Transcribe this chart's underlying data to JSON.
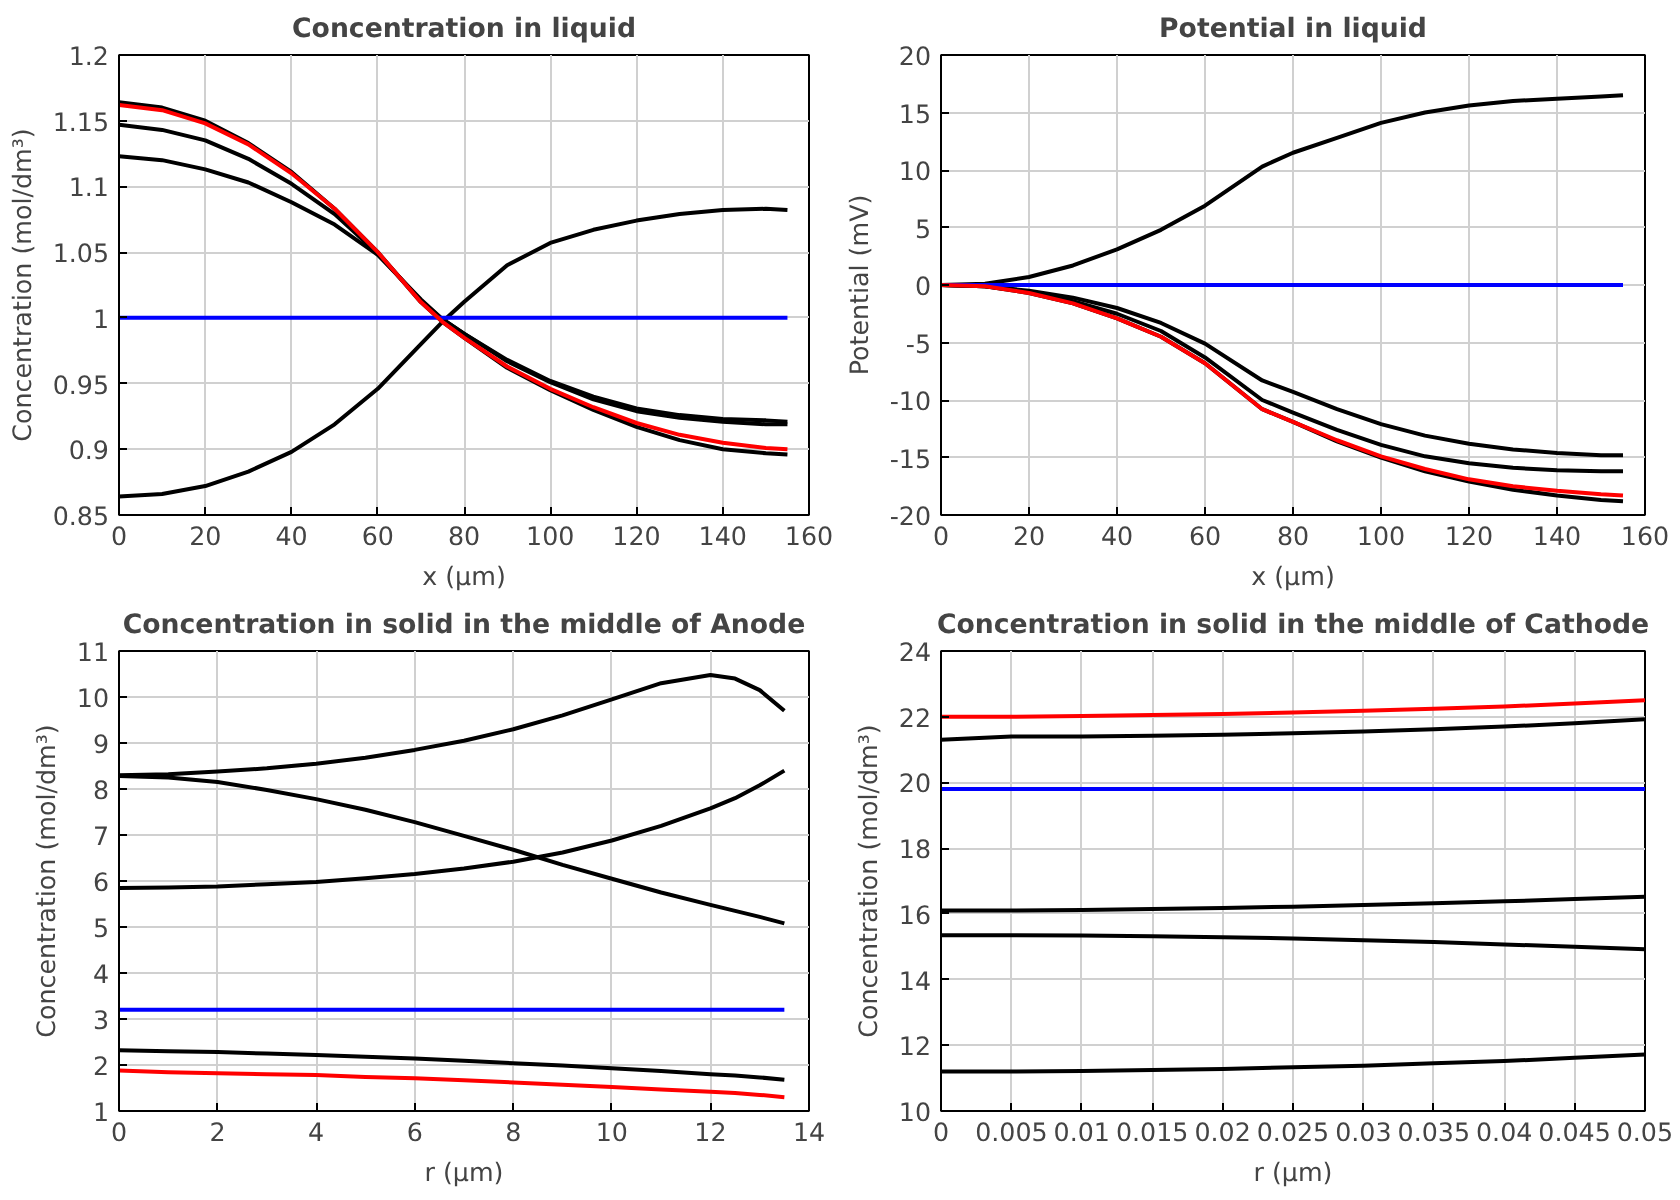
{
  "chart_data": [
    {
      "type": "line",
      "title": "Concentration in liquid",
      "xlabel": "x (µm)",
      "ylabel": "Concentration (mol/dm³)",
      "grid": true,
      "xlim": [
        0,
        160
      ],
      "xticks": [
        0,
        20,
        40,
        60,
        80,
        100,
        120,
        140,
        160
      ],
      "ylim": [
        0.85,
        1.2
      ],
      "yticks": [
        0.85,
        0.9,
        0.95,
        1,
        1.05,
        1.1,
        1.15,
        1.2
      ],
      "x": [
        0,
        10,
        20,
        30,
        40,
        50,
        60,
        70,
        75,
        80,
        90,
        100,
        110,
        120,
        130,
        140,
        150,
        155
      ],
      "series": [
        {
          "color": "#000000",
          "values": [
            1.164,
            1.16,
            1.15,
            1.133,
            1.111,
            1.083,
            1.05,
            1.012,
            0.997,
            0.985,
            0.962,
            0.945,
            0.93,
            0.917,
            0.907,
            0.9,
            0.897,
            0.896
          ]
        },
        {
          "color": "#000000",
          "values": [
            1.147,
            1.143,
            1.135,
            1.121,
            1.102,
            1.079,
            1.049,
            1.013,
            0.999,
            0.988,
            0.968,
            0.952,
            0.94,
            0.931,
            0.926,
            0.923,
            0.922,
            0.921
          ]
        },
        {
          "color": "#000000",
          "values": [
            1.123,
            1.12,
            1.113,
            1.103,
            1.088,
            1.071,
            1.048,
            1.014,
            0.999,
            0.988,
            0.967,
            0.951,
            0.938,
            0.929,
            0.924,
            0.921,
            0.919,
            0.919
          ]
        },
        {
          "color": "#000000",
          "values": [
            0.864,
            0.866,
            0.872,
            0.883,
            0.898,
            0.919,
            0.946,
            0.98,
            0.997,
            1.012,
            1.04,
            1.057,
            1.067,
            1.074,
            1.079,
            1.082,
            1.083,
            1.082
          ]
        },
        {
          "color": "#0000ff",
          "values": [
            1,
            1,
            1,
            1,
            1,
            1,
            1,
            1,
            1,
            1,
            1,
            1,
            1,
            1,
            1,
            1,
            1,
            1
          ]
        },
        {
          "color": "#ff0000",
          "values": [
            1.162,
            1.158,
            1.148,
            1.132,
            1.11,
            1.083,
            1.05,
            1.012,
            0.997,
            0.985,
            0.963,
            0.946,
            0.932,
            0.92,
            0.911,
            0.905,
            0.901,
            0.9
          ]
        }
      ]
    },
    {
      "type": "line",
      "title": "Potential in liquid",
      "xlabel": "x (µm)",
      "ylabel": "Potential (mV)",
      "grid": true,
      "xlim": [
        0,
        160
      ],
      "xticks": [
        0,
        20,
        40,
        60,
        80,
        100,
        120,
        140,
        160
      ],
      "ylim": [
        -20,
        20
      ],
      "yticks": [
        -20,
        -15,
        -10,
        -5,
        0,
        5,
        10,
        15,
        20
      ],
      "x": [
        0,
        10,
        20,
        30,
        40,
        50,
        60,
        73,
        80,
        90,
        100,
        110,
        120,
        130,
        140,
        150,
        155
      ],
      "series": [
        {
          "color": "#000000",
          "values": [
            0,
            0.1,
            0.7,
            1.7,
            3.1,
            4.8,
            6.9,
            10.3,
            11.5,
            12.8,
            14.1,
            15.0,
            15.6,
            16.0,
            16.2,
            16.4,
            16.5
          ]
        },
        {
          "color": "#000000",
          "values": [
            0,
            -0.1,
            -0.5,
            -1.1,
            -2.0,
            -3.3,
            -5.1,
            -8.3,
            -9.3,
            -10.8,
            -12.1,
            -13.1,
            -13.8,
            -14.3,
            -14.6,
            -14.8,
            -14.8
          ]
        },
        {
          "color": "#000000",
          "values": [
            0,
            -0.1,
            -0.6,
            -1.4,
            -2.5,
            -4.0,
            -6.3,
            -10.0,
            -11.1,
            -12.6,
            -13.9,
            -14.9,
            -15.5,
            -15.9,
            -16.1,
            -16.2,
            -16.2
          ]
        },
        {
          "color": "#000000",
          "values": [
            0,
            -0.1,
            -0.7,
            -1.6,
            -2.9,
            -4.5,
            -6.8,
            -10.8,
            -11.9,
            -13.6,
            -15.0,
            -16.2,
            -17.1,
            -17.8,
            -18.3,
            -18.7,
            -18.8
          ]
        },
        {
          "color": "#0000ff",
          "values": [
            0,
            0,
            0,
            0,
            0,
            0,
            0,
            0,
            0,
            0,
            0,
            0,
            0,
            0,
            0,
            0,
            0
          ]
        },
        {
          "color": "#ff0000",
          "values": [
            0,
            -0.1,
            -0.7,
            -1.6,
            -2.9,
            -4.5,
            -6.8,
            -10.8,
            -11.9,
            -13.5,
            -14.9,
            -16.0,
            -16.9,
            -17.5,
            -17.9,
            -18.2,
            -18.3
          ]
        }
      ]
    },
    {
      "type": "line",
      "title": "Concentration in solid in the middle of Anode",
      "xlabel": "r (µm)",
      "ylabel": "Concentration (mol/dm³)",
      "grid": true,
      "xlim": [
        0,
        14
      ],
      "xticks": [
        0,
        2,
        4,
        6,
        8,
        10,
        12,
        14
      ],
      "ylim": [
        1,
        11
      ],
      "yticks": [
        1,
        2,
        3,
        4,
        5,
        6,
        7,
        8,
        9,
        10,
        11
      ],
      "x": [
        0,
        1,
        2,
        3,
        4,
        5,
        6,
        7,
        8,
        9,
        10,
        11,
        12,
        12.5,
        13,
        13.5
      ],
      "series": [
        {
          "color": "#000000",
          "values": [
            8.3,
            8.32,
            8.38,
            8.45,
            8.55,
            8.68,
            8.85,
            9.05,
            9.3,
            9.6,
            9.95,
            10.3,
            10.48,
            10.4,
            10.15,
            9.7
          ]
        },
        {
          "color": "#000000",
          "values": [
            8.28,
            8.25,
            8.15,
            7.98,
            7.78,
            7.55,
            7.28,
            6.98,
            6.68,
            6.35,
            6.05,
            5.75,
            5.48,
            5.35,
            5.22,
            5.08
          ]
        },
        {
          "color": "#000000",
          "values": [
            5.85,
            5.86,
            5.88,
            5.93,
            5.98,
            6.06,
            6.15,
            6.27,
            6.42,
            6.62,
            6.88,
            7.2,
            7.58,
            7.8,
            8.08,
            8.4
          ]
        },
        {
          "color": "#000000",
          "values": [
            2.32,
            2.3,
            2.28,
            2.25,
            2.22,
            2.18,
            2.14,
            2.09,
            2.04,
            1.99,
            1.93,
            1.87,
            1.8,
            1.77,
            1.73,
            1.68
          ]
        },
        {
          "color": "#0000ff",
          "values": [
            3.2,
            3.2,
            3.2,
            3.2,
            3.2,
            3.2,
            3.2,
            3.2,
            3.2,
            3.2,
            3.2,
            3.2,
            3.2,
            3.2,
            3.2,
            3.2
          ]
        },
        {
          "color": "#ff0000",
          "values": [
            1.88,
            1.84,
            1.82,
            1.8,
            1.78,
            1.74,
            1.71,
            1.67,
            1.62,
            1.57,
            1.52,
            1.47,
            1.42,
            1.39,
            1.35,
            1.3
          ]
        }
      ]
    },
    {
      "type": "line",
      "title": "Concentration in solid in the middle of Cathode",
      "xlabel": "r (µm)",
      "ylabel": "Concentration (mol/dm³)",
      "grid": true,
      "xlim": [
        0,
        0.05
      ],
      "xticks": [
        0,
        0.005,
        0.01,
        0.015,
        0.02,
        0.025,
        0.03,
        0.035,
        0.04,
        0.045,
        0.05
      ],
      "ylim": [
        10,
        24
      ],
      "yticks": [
        10,
        12,
        14,
        16,
        18,
        20,
        22,
        24
      ],
      "x": [
        0,
        0.005,
        0.01,
        0.015,
        0.02,
        0.025,
        0.03,
        0.035,
        0.04,
        0.045,
        0.05
      ],
      "series": [
        {
          "color": "#000000",
          "values": [
            21.3,
            21.4,
            21.4,
            21.42,
            21.45,
            21.5,
            21.55,
            21.62,
            21.7,
            21.8,
            21.92
          ]
        },
        {
          "color": "#000000",
          "values": [
            16.1,
            16.1,
            16.12,
            16.15,
            16.18,
            16.22,
            16.27,
            16.32,
            16.38,
            16.45,
            16.52
          ]
        },
        {
          "color": "#000000",
          "values": [
            15.35,
            15.35,
            15.34,
            15.32,
            15.29,
            15.25,
            15.2,
            15.14,
            15.07,
            15.0,
            14.92
          ]
        },
        {
          "color": "#000000",
          "values": [
            11.2,
            11.2,
            11.22,
            11.25,
            11.28,
            11.33,
            11.38,
            11.45,
            11.52,
            11.62,
            11.72
          ]
        },
        {
          "color": "#0000ff",
          "values": [
            19.8,
            19.8,
            19.8,
            19.8,
            19.8,
            19.8,
            19.8,
            19.8,
            19.8,
            19.8,
            19.8
          ]
        },
        {
          "color": "#ff0000",
          "values": [
            22.0,
            22.0,
            22.02,
            22.05,
            22.08,
            22.13,
            22.18,
            22.24,
            22.31,
            22.4,
            22.5
          ]
        }
      ]
    }
  ]
}
